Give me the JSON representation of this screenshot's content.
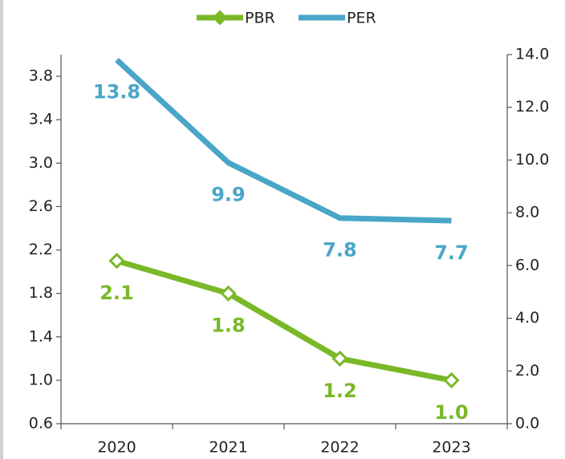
{
  "chart_data": {
    "type": "line",
    "categories": [
      "2020",
      "2021",
      "2022",
      "2023"
    ],
    "series": [
      {
        "name": "PBR",
        "color": "#7ab828",
        "values": [
          2.1,
          1.8,
          1.2,
          1.0
        ],
        "value_labels": [
          "2.1",
          "1.8",
          "1.2",
          "1.0"
        ],
        "axis": "y",
        "marker": "diamond"
      },
      {
        "name": "PER",
        "color": "#4aa6c8",
        "values": [
          13.8,
          9.9,
          7.8,
          7.7
        ],
        "axis": "y2"
      }
    ],
    "ylim": [
      0.6,
      4.0
    ],
    "yticks": [
      0.6,
      {
        "value": 1,
        "label": "1.0"
      },
      1.4,
      1.8,
      2.2,
      2.6,
      {
        "value": 3,
        "label": "3.0"
      },
      3.4,
      3.8
    ],
    "y2lim": [
      0,
      14
    ],
    "y2ticks": [
      {
        "value": 0,
        "label": "0.0"
      },
      {
        "value": 2,
        "label": "2.0"
      },
      {
        "value": 4,
        "label": "4.0"
      },
      {
        "value": 6,
        "label": "6.0"
      },
      {
        "value": 8,
        "label": "8.0"
      },
      {
        "value": 10,
        "label": "10.0"
      },
      {
        "value": 12,
        "label": "12.0"
      },
      {
        "value": 14,
        "label": "14.0"
      }
    ],
    "legend": "top"
  }
}
